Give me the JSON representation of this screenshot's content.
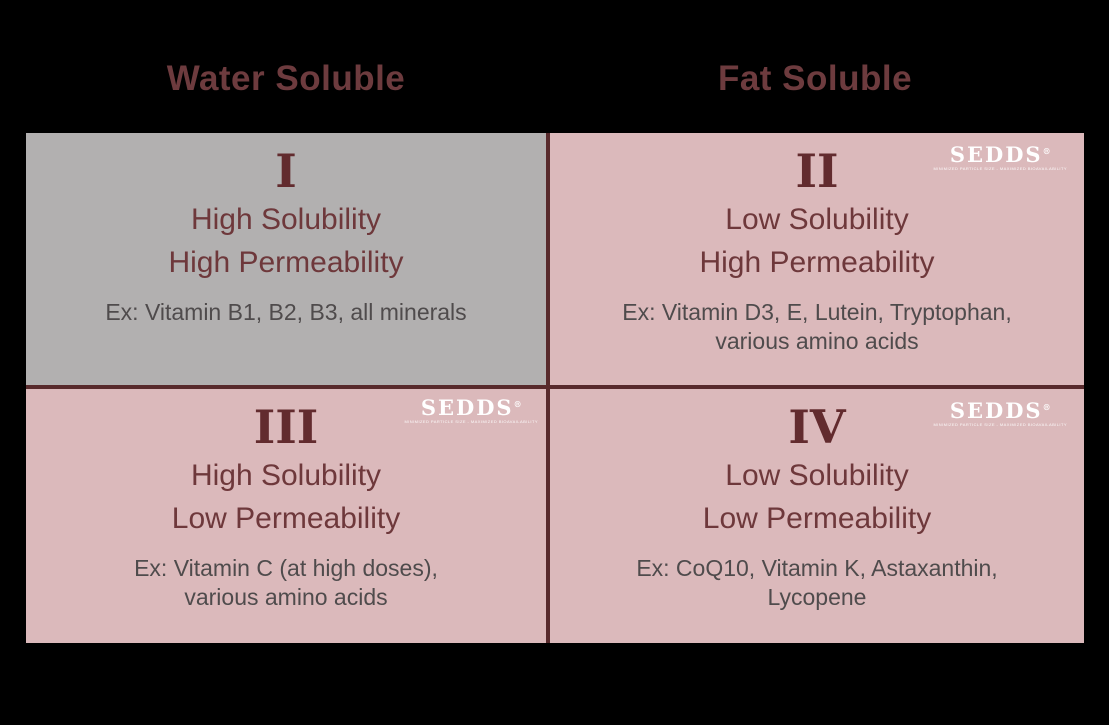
{
  "colors": {
    "background": "#000000",
    "header_text": "#6d3b3e",
    "numeral_text": "#622b2e",
    "attribute_text": "#6e383b",
    "example_text": "#4f4b4c",
    "divider": "#582a2c",
    "cell_gray": "#b2b0b0",
    "cell_pink": "#dbb9bb",
    "logo_text": "#ffffff"
  },
  "headers": {
    "left": "Water Soluble",
    "right": "Fat Soluble"
  },
  "quadrants": [
    {
      "numeral": "I",
      "line1": "High Solubility",
      "line2": "High Permeability",
      "example_line1": "Ex: Vitamin B1, B2, B3, all minerals",
      "example_line2": "",
      "bg": "#b2b0b0",
      "has_logo": false
    },
    {
      "numeral": "II",
      "line1": "Low Solubility",
      "line2": "High Permeability",
      "example_line1": "Ex: Vitamin D3, E, Lutein, Tryptophan,",
      "example_line2": "various amino acids",
      "bg": "#dbb9bb",
      "has_logo": true
    },
    {
      "numeral": "III",
      "line1": "High Solubility",
      "line2": "Low Permeability",
      "example_line1": "Ex: Vitamin C (at high doses),",
      "example_line2": "various amino acids",
      "bg": "#dbb9bb",
      "has_logo": true
    },
    {
      "numeral": "IV",
      "line1": "Low Solubility",
      "line2": "Low Permeability",
      "example_line1": "Ex: CoQ10, Vitamin K, Astaxanthin,",
      "example_line2": "Lycopene",
      "bg": "#dbb9bb",
      "has_logo": true
    }
  ],
  "logo": {
    "text": "SEDDS",
    "registered": "®",
    "tagline": "MINIMIZED PARTICLE SIZE - MAXIMIZED BIOAVAILABILITY"
  }
}
